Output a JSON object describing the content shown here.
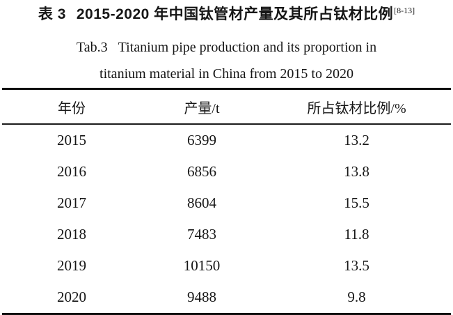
{
  "caption": {
    "zh_label": "表 3",
    "zh_text": "2015-2020 年中国钛管材产量及其所占钛材比例",
    "zh_superscript": "[8-13]",
    "en_label": "Tab.3",
    "en_line1": "Titanium pipe production and its proportion in",
    "en_line2": "titanium material in China from 2015 to 2020"
  },
  "chart_data": {
    "type": "table",
    "title": "2015-2020 年中国钛管材产量及其所占钛材比例 / Titanium pipe production and its proportion in titanium material in China from 2015 to 2020",
    "columns": [
      "年份",
      "产量/t",
      "所占钛材比例/%"
    ],
    "rows": [
      [
        "2015",
        "6399",
        "13.2"
      ],
      [
        "2016",
        "6856",
        "13.8"
      ],
      [
        "2017",
        "8604",
        "15.5"
      ],
      [
        "2018",
        "7483",
        "11.8"
      ],
      [
        "2019",
        "10150",
        "13.5"
      ],
      [
        "2020",
        "9488",
        "9.8"
      ]
    ]
  }
}
